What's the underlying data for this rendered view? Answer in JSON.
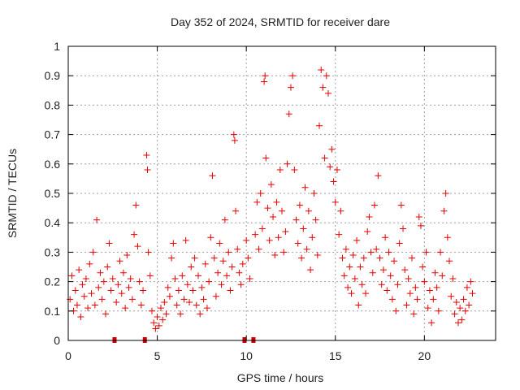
{
  "chart_data": {
    "type": "scatter",
    "title": "Day 352 of 2024, SRMTID for receiver dare",
    "xlabel": "GPS time / hours",
    "ylabel": "SRMTID / TECUs",
    "xlim": [
      0,
      24
    ],
    "ylim": [
      0,
      1
    ],
    "x_ticks": [
      0,
      5,
      10,
      15,
      20
    ],
    "y_ticks": [
      0,
      0.1,
      0.2,
      0.3,
      0.4,
      0.5,
      0.6,
      0.7,
      0.8,
      0.9,
      1
    ],
    "x_tick_labels": [
      "0",
      "5",
      "10",
      "15",
      "20"
    ],
    "y_tick_labels": [
      "0",
      "0.1",
      "0.2",
      "0.3",
      "0.4",
      "0.5",
      "0.6",
      "0.7",
      "0.8",
      "0.9",
      "1"
    ],
    "grid": true,
    "marker": "+",
    "color": "#e60000",
    "outage_marks_x": [
      2.6,
      4.3,
      9.9,
      10.4
    ],
    "series": [
      {
        "name": "SRMTID",
        "points": [
          [
            0.1,
            0.14
          ],
          [
            0.2,
            0.22
          ],
          [
            0.3,
            0.1
          ],
          [
            0.4,
            0.17
          ],
          [
            0.5,
            0.12
          ],
          [
            0.6,
            0.24
          ],
          [
            0.7,
            0.08
          ],
          [
            0.8,
            0.19
          ],
          [
            0.9,
            0.15
          ],
          [
            1.0,
            0.21
          ],
          [
            1.1,
            0.11
          ],
          [
            1.2,
            0.26
          ],
          [
            1.3,
            0.16
          ],
          [
            1.4,
            0.3
          ],
          [
            1.5,
            0.12
          ],
          [
            1.6,
            0.41
          ],
          [
            1.7,
            0.18
          ],
          [
            1.8,
            0.23
          ],
          [
            1.9,
            0.14
          ],
          [
            2.0,
            0.2
          ],
          [
            2.1,
            0.09
          ],
          [
            2.2,
            0.25
          ],
          [
            2.3,
            0.33
          ],
          [
            2.4,
            0.17
          ],
          [
            2.5,
            0.21
          ],
          [
            2.7,
            0.13
          ],
          [
            2.8,
            0.19
          ],
          [
            2.9,
            0.27
          ],
          [
            3.0,
            0.16
          ],
          [
            3.1,
            0.23
          ],
          [
            3.2,
            0.11
          ],
          [
            3.3,
            0.29
          ],
          [
            3.4,
            0.18
          ],
          [
            3.5,
            0.21
          ],
          [
            3.6,
            0.14
          ],
          [
            3.7,
            0.36
          ],
          [
            3.8,
            0.46
          ],
          [
            3.9,
            0.32
          ],
          [
            4.0,
            0.2
          ],
          [
            4.1,
            0.12
          ],
          [
            4.2,
            0.17
          ],
          [
            4.4,
            0.63
          ],
          [
            4.45,
            0.58
          ],
          [
            4.5,
            0.3
          ],
          [
            4.6,
            0.22
          ],
          [
            4.7,
            0.1
          ],
          [
            4.8,
            0.06
          ],
          [
            4.9,
            0.04
          ],
          [
            5.0,
            0.08
          ],
          [
            5.1,
            0.05
          ],
          [
            5.2,
            0.11
          ],
          [
            5.3,
            0.07
          ],
          [
            5.4,
            0.13
          ],
          [
            5.5,
            0.09
          ],
          [
            5.6,
            0.18
          ],
          [
            5.7,
            0.15
          ],
          [
            5.8,
            0.28
          ],
          [
            5.9,
            0.33
          ],
          [
            6.0,
            0.21
          ],
          [
            6.1,
            0.12
          ],
          [
            6.2,
            0.17
          ],
          [
            6.3,
            0.09
          ],
          [
            6.4,
            0.22
          ],
          [
            6.5,
            0.14
          ],
          [
            6.6,
            0.34
          ],
          [
            6.7,
            0.19
          ],
          [
            6.8,
            0.13
          ],
          [
            6.9,
            0.25
          ],
          [
            7.0,
            0.17
          ],
          [
            7.1,
            0.28
          ],
          [
            7.2,
            0.12
          ],
          [
            7.3,
            0.22
          ],
          [
            7.4,
            0.09
          ],
          [
            7.5,
            0.18
          ],
          [
            7.6,
            0.14
          ],
          [
            7.7,
            0.26
          ],
          [
            7.8,
            0.11
          ],
          [
            7.9,
            0.2
          ],
          [
            8.0,
            0.35
          ],
          [
            8.1,
            0.56
          ],
          [
            8.2,
            0.28
          ],
          [
            8.3,
            0.15
          ],
          [
            8.4,
            0.23
          ],
          [
            8.5,
            0.33
          ],
          [
            8.6,
            0.19
          ],
          [
            8.7,
            0.27
          ],
          [
            8.8,
            0.41
          ],
          [
            8.9,
            0.22
          ],
          [
            9.0,
            0.3
          ],
          [
            9.1,
            0.17
          ],
          [
            9.2,
            0.25
          ],
          [
            9.3,
            0.7
          ],
          [
            9.35,
            0.68
          ],
          [
            9.4,
            0.44
          ],
          [
            9.5,
            0.31
          ],
          [
            9.6,
            0.23
          ],
          [
            9.7,
            0.19
          ],
          [
            9.8,
            0.26
          ],
          [
            10.0,
            0.34
          ],
          [
            10.1,
            0.28
          ],
          [
            10.2,
            0.21
          ],
          [
            10.5,
            0.36
          ],
          [
            10.6,
            0.47
          ],
          [
            10.7,
            0.31
          ],
          [
            10.8,
            0.5
          ],
          [
            10.9,
            0.38
          ],
          [
            11.0,
            0.88
          ],
          [
            11.05,
            0.9
          ],
          [
            11.1,
            0.62
          ],
          [
            11.2,
            0.45
          ],
          [
            11.3,
            0.34
          ],
          [
            11.4,
            0.53
          ],
          [
            11.5,
            0.42
          ],
          [
            11.6,
            0.29
          ],
          [
            11.7,
            0.47
          ],
          [
            11.8,
            0.35
          ],
          [
            11.9,
            0.58
          ],
          [
            12.0,
            0.44
          ],
          [
            12.1,
            0.3
          ],
          [
            12.2,
            0.37
          ],
          [
            12.3,
            0.6
          ],
          [
            12.4,
            0.77
          ],
          [
            12.5,
            0.86
          ],
          [
            12.6,
            0.9
          ],
          [
            12.7,
            0.58
          ],
          [
            12.8,
            0.41
          ],
          [
            12.9,
            0.33
          ],
          [
            13.0,
            0.46
          ],
          [
            13.1,
            0.28
          ],
          [
            13.2,
            0.38
          ],
          [
            13.3,
            0.52
          ],
          [
            13.4,
            0.31
          ],
          [
            13.5,
            0.44
          ],
          [
            13.6,
            0.24
          ],
          [
            13.7,
            0.35
          ],
          [
            13.8,
            0.5
          ],
          [
            13.9,
            0.41
          ],
          [
            14.0,
            0.29
          ],
          [
            14.1,
            0.73
          ],
          [
            14.2,
            0.92
          ],
          [
            14.3,
            0.86
          ],
          [
            14.4,
            0.62
          ],
          [
            14.5,
            0.9
          ],
          [
            14.6,
            0.84
          ],
          [
            14.7,
            0.59
          ],
          [
            14.8,
            0.65
          ],
          [
            14.9,
            0.54
          ],
          [
            15.0,
            0.47
          ],
          [
            15.1,
            0.58
          ],
          [
            15.2,
            0.36
          ],
          [
            15.3,
            0.44
          ],
          [
            15.4,
            0.28
          ],
          [
            15.5,
            0.22
          ],
          [
            15.6,
            0.31
          ],
          [
            15.7,
            0.18
          ],
          [
            15.8,
            0.25
          ],
          [
            15.9,
            0.16
          ],
          [
            16.0,
            0.29
          ],
          [
            16.1,
            0.21
          ],
          [
            16.2,
            0.34
          ],
          [
            16.3,
            0.12
          ],
          [
            16.4,
            0.25
          ],
          [
            16.5,
            0.19
          ],
          [
            16.6,
            0.28
          ],
          [
            16.7,
            0.16
          ],
          [
            16.8,
            0.37
          ],
          [
            16.9,
            0.42
          ],
          [
            17.0,
            0.3
          ],
          [
            17.1,
            0.23
          ],
          [
            17.2,
            0.46
          ],
          [
            17.3,
            0.31
          ],
          [
            17.4,
            0.56
          ],
          [
            17.5,
            0.28
          ],
          [
            17.6,
            0.19
          ],
          [
            17.7,
            0.24
          ],
          [
            17.8,
            0.35
          ],
          [
            17.9,
            0.17
          ],
          [
            18.0,
            0.3
          ],
          [
            18.1,
            0.22
          ],
          [
            18.2,
            0.14
          ],
          [
            18.3,
            0.27
          ],
          [
            18.4,
            0.1
          ],
          [
            18.5,
            0.19
          ],
          [
            18.6,
            0.33
          ],
          [
            18.7,
            0.46
          ],
          [
            18.8,
            0.38
          ],
          [
            18.9,
            0.24
          ],
          [
            19.0,
            0.12
          ],
          [
            19.1,
            0.21
          ],
          [
            19.2,
            0.16
          ],
          [
            19.3,
            0.28
          ],
          [
            19.4,
            0.09
          ],
          [
            19.5,
            0.18
          ],
          [
            19.6,
            0.14
          ],
          [
            19.7,
            0.42
          ],
          [
            19.8,
            0.39
          ],
          [
            19.9,
            0.25
          ],
          [
            20.0,
            0.2
          ],
          [
            20.1,
            0.3
          ],
          [
            20.2,
            0.11
          ],
          [
            20.3,
            0.17
          ],
          [
            20.4,
            0.06
          ],
          [
            20.5,
            0.14
          ],
          [
            20.6,
            0.23
          ],
          [
            20.7,
            0.18
          ],
          [
            20.8,
            0.1
          ],
          [
            20.9,
            0.3
          ],
          [
            21.0,
            0.22
          ],
          [
            21.1,
            0.44
          ],
          [
            21.2,
            0.5
          ],
          [
            21.3,
            0.35
          ],
          [
            21.4,
            0.27
          ],
          [
            21.5,
            0.15
          ],
          [
            21.6,
            0.21
          ],
          [
            21.7,
            0.09
          ],
          [
            21.8,
            0.13
          ],
          [
            21.9,
            0.06
          ],
          [
            22.0,
            0.11
          ],
          [
            22.1,
            0.07
          ],
          [
            22.2,
            0.14
          ],
          [
            22.3,
            0.1
          ],
          [
            22.4,
            0.18
          ],
          [
            22.5,
            0.12
          ],
          [
            22.6,
            0.2
          ],
          [
            22.7,
            0.16
          ]
        ]
      }
    ]
  }
}
